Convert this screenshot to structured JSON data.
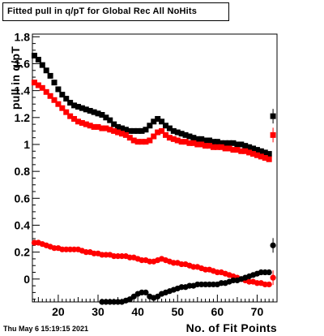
{
  "window": {
    "title": "Fitted pull in q/pT for Global Rec All NoHits",
    "timestamp": "Thu May  6 15:19:15 2021"
  },
  "chart_data": {
    "type": "scatter",
    "title": "Fitted pull in q/pT for Global Rec All NoHits",
    "xlabel": "No. of Fit Points",
    "ylabel": "pull in q/pT",
    "xlim": [
      13.5,
      75
    ],
    "ylim": [
      -0.17,
      1.82
    ],
    "x_ticks": [
      20,
      30,
      40,
      50,
      60,
      70
    ],
    "y_ticks": [
      0,
      0.2,
      0.4,
      0.6,
      0.8,
      1,
      1.2,
      1.4,
      1.6,
      1.8
    ],
    "x_tick_labels": [
      "20",
      "30",
      "40",
      "50",
      "60",
      "70"
    ],
    "y_tick_labels": [
      "0",
      "0.2",
      "0.4",
      "0.6",
      "0.8",
      "1",
      "1.2",
      "1.4",
      "1.6",
      "1.8"
    ],
    "grid": false,
    "x": [
      14,
      15,
      16,
      17,
      18,
      19,
      20,
      21,
      22,
      23,
      24,
      25,
      26,
      27,
      28,
      29,
      30,
      31,
      32,
      33,
      34,
      35,
      36,
      37,
      38,
      39,
      40,
      41,
      42,
      43,
      44,
      45,
      46,
      47,
      48,
      49,
      50,
      51,
      52,
      53,
      54,
      55,
      56,
      57,
      58,
      59,
      60,
      61,
      62,
      63,
      64,
      65,
      66,
      67,
      68,
      69,
      70,
      71,
      72,
      73
    ],
    "series": [
      {
        "color": "#000000",
        "marker": "square",
        "values": [
          1.66,
          1.63,
          1.59,
          1.55,
          1.51,
          1.46,
          1.41,
          1.37,
          1.34,
          1.31,
          1.29,
          1.28,
          1.27,
          1.26,
          1.25,
          1.24,
          1.23,
          1.22,
          1.2,
          1.18,
          1.15,
          1.13,
          1.12,
          1.11,
          1.1,
          1.1,
          1.1,
          1.1,
          1.11,
          1.14,
          1.17,
          1.19,
          1.17,
          1.14,
          1.12,
          1.1,
          1.09,
          1.08,
          1.07,
          1.06,
          1.05,
          1.04,
          1.04,
          1.03,
          1.03,
          1.02,
          1.02,
          1.01,
          1.01,
          1.01,
          1.01,
          1.0,
          1.0,
          0.99,
          0.98,
          0.97,
          0.96,
          0.95,
          0.94,
          0.93
        ]
      },
      {
        "color": "#ff0000",
        "marker": "square",
        "values": [
          1.46,
          1.44,
          1.42,
          1.39,
          1.36,
          1.33,
          1.3,
          1.27,
          1.24,
          1.21,
          1.19,
          1.17,
          1.16,
          1.15,
          1.14,
          1.13,
          1.13,
          1.12,
          1.12,
          1.11,
          1.1,
          1.09,
          1.08,
          1.07,
          1.05,
          1.03,
          1.02,
          1.02,
          1.02,
          1.03,
          1.06,
          1.09,
          1.1,
          1.07,
          1.05,
          1.04,
          1.03,
          1.02,
          1.02,
          1.01,
          1.01,
          1.0,
          1.0,
          0.99,
          0.99,
          0.98,
          0.98,
          0.98,
          0.97,
          0.97,
          0.96,
          0.96,
          0.95,
          0.95,
          0.94,
          0.93,
          0.92,
          0.91,
          0.9,
          0.89
        ]
      },
      {
        "color": "#ff0000",
        "marker": "circle",
        "values": [
          0.27,
          0.27,
          0.26,
          0.25,
          0.24,
          0.23,
          0.23,
          0.22,
          0.22,
          0.22,
          0.22,
          0.22,
          0.21,
          0.2,
          0.2,
          0.19,
          0.19,
          0.18,
          0.18,
          0.18,
          0.17,
          0.17,
          0.17,
          0.17,
          0.16,
          0.16,
          0.15,
          0.14,
          0.14,
          0.13,
          0.13,
          0.14,
          0.15,
          0.14,
          0.13,
          0.12,
          0.12,
          0.11,
          0.11,
          0.1,
          0.09,
          0.09,
          0.08,
          0.07,
          0.07,
          0.06,
          0.05,
          0.05,
          0.04,
          0.03,
          0.02,
          0.01,
          0.0,
          -0.01,
          -0.02,
          -0.02,
          -0.03,
          -0.03,
          -0.04,
          -0.04
        ]
      },
      {
        "color": "#000000",
        "marker": "circle",
        "x": [
          31,
          32,
          33,
          34,
          35,
          36,
          37,
          38,
          39,
          40,
          41,
          42,
          43,
          44,
          45,
          46,
          47,
          48,
          49,
          50,
          51,
          52,
          53,
          54,
          55,
          56,
          57,
          58,
          59,
          60,
          61,
          62,
          63,
          64,
          65,
          66,
          67,
          68,
          69,
          70,
          71,
          72,
          73
        ],
        "values": [
          -0.17,
          -0.17,
          -0.17,
          -0.17,
          -0.17,
          -0.17,
          -0.16,
          -0.15,
          -0.13,
          -0.11,
          -0.1,
          -0.1,
          -0.13,
          -0.14,
          -0.13,
          -0.11,
          -0.1,
          -0.09,
          -0.08,
          -0.07,
          -0.06,
          -0.06,
          -0.05,
          -0.05,
          -0.04,
          -0.04,
          -0.04,
          -0.04,
          -0.04,
          -0.04,
          -0.03,
          -0.03,
          -0.02,
          -0.01,
          -0.01,
          0.0,
          0.01,
          0.02,
          0.03,
          0.04,
          0.05,
          0.05,
          0.05
        ]
      }
    ],
    "overflow_points": [
      {
        "x": 74,
        "y": 1.21,
        "color": "#000000",
        "marker": "square"
      },
      {
        "x": 74,
        "y": 1.07,
        "color": "#ff0000",
        "marker": "square"
      },
      {
        "x": 74,
        "y": 0.25,
        "color": "#000000",
        "marker": "circle"
      },
      {
        "x": 74,
        "y": 0.01,
        "color": "#ff0000",
        "marker": "circle"
      }
    ]
  }
}
